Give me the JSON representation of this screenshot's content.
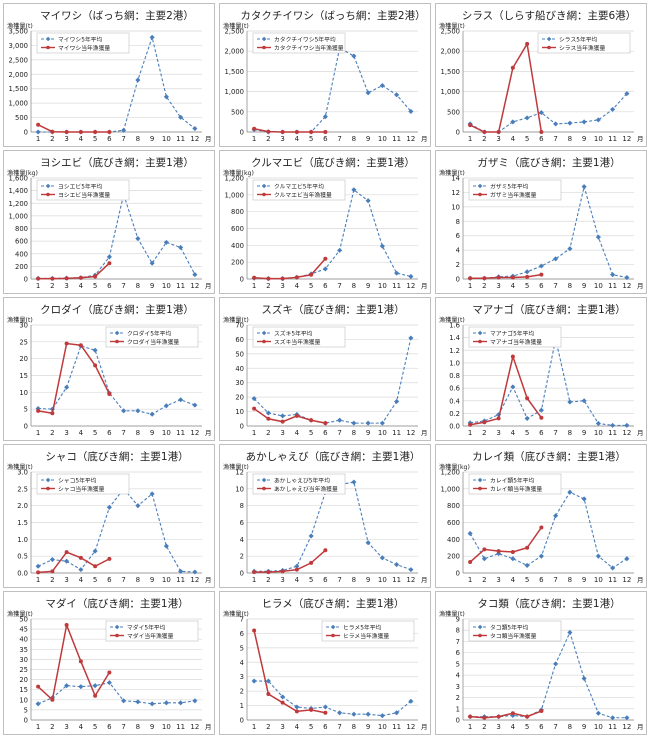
{
  "colors": {
    "avg": "#4a7ebb",
    "cur": "#c0393b",
    "grid": "#d9d9d9",
    "axis": "#7f7f7f",
    "text": "#222222"
  },
  "chart_data": [
    {
      "type": "line",
      "title": "マイワシ（ばっち網：主要2港）",
      "ylabel": "漁獲量(t)",
      "xlabel": "月",
      "ylim": [
        0,
        3500
      ],
      "ystep": 500,
      "legend": "top-left",
      "categories": [
        "1",
        "2",
        "3",
        "4",
        "5",
        "6",
        "7",
        "8",
        "9",
        "10",
        "11",
        "12"
      ],
      "series": [
        {
          "name": "マイワシ5年平均",
          "style": "avg",
          "values": [
            0,
            0,
            0,
            0,
            0,
            0,
            60,
            1800,
            3280,
            1220,
            510,
            120
          ]
        },
        {
          "name": "マイワシ当年漁獲量",
          "style": "cur",
          "values": [
            250,
            10,
            0,
            0,
            0,
            0,
            null,
            null,
            null,
            null,
            null,
            null
          ]
        }
      ]
    },
    {
      "type": "line",
      "title": "カタクチイワシ（ばっち網：主要2港）",
      "ylabel": "漁獲量(t)",
      "xlabel": "月",
      "ylim": [
        0,
        2500
      ],
      "ystep": 500,
      "legend": "top-left",
      "categories": [
        "1",
        "2",
        "3",
        "4",
        "5",
        "6",
        "7",
        "8",
        "9",
        "10",
        "11",
        "12"
      ],
      "series": [
        {
          "name": "カタクチイワシ5年平均",
          "style": "avg",
          "values": [
            60,
            0,
            0,
            0,
            0,
            380,
            2080,
            1880,
            970,
            1150,
            920,
            510
          ]
        },
        {
          "name": "カタクチイワシ当年漁獲量",
          "style": "cur",
          "values": [
            80,
            10,
            0,
            0,
            0,
            0,
            null,
            null,
            null,
            null,
            null,
            null
          ]
        }
      ]
    },
    {
      "type": "line",
      "title": "シラス（しらす船びき網：主要6港）",
      "ylabel": "漁獲量(t)",
      "xlabel": "月",
      "ylim": [
        0,
        2500
      ],
      "ystep": 500,
      "legend": "top-right",
      "categories": [
        "1",
        "2",
        "3",
        "4",
        "5",
        "6",
        "7",
        "8",
        "9",
        "10",
        "11",
        "12"
      ],
      "series": [
        {
          "name": "シラス5年平均",
          "style": "avg",
          "values": [
            200,
            0,
            0,
            250,
            350,
            480,
            200,
            220,
            250,
            300,
            560,
            950
          ]
        },
        {
          "name": "シラス当年漁獲量",
          "style": "cur",
          "values": [
            170,
            0,
            0,
            1590,
            2180,
            0,
            null,
            null,
            null,
            null,
            null,
            null
          ]
        }
      ]
    },
    {
      "type": "line",
      "title": "ヨシエビ（底びき網：主要1港）",
      "ylabel": "漁獲量(kg)",
      "xlabel": "月",
      "ylim": [
        0,
        1600
      ],
      "ystep": 200,
      "legend": "top-left",
      "categories": [
        "1",
        "2",
        "3",
        "4",
        "5",
        "6",
        "7",
        "8",
        "9",
        "10",
        "11",
        "12"
      ],
      "series": [
        {
          "name": "ヨシエビ5年平均",
          "style": "avg",
          "values": [
            10,
            10,
            15,
            20,
            60,
            350,
            1340,
            640,
            250,
            580,
            500,
            70
          ]
        },
        {
          "name": "ヨシエビ当年漁獲量",
          "style": "cur",
          "values": [
            5,
            5,
            10,
            20,
            40,
            250,
            null,
            null,
            null,
            null,
            null,
            null
          ]
        }
      ]
    },
    {
      "type": "line",
      "title": "クルマエビ（底びき網：主要1港）",
      "ylabel": "漁獲量(kg)",
      "xlabel": "月",
      "ylim": [
        0,
        1200
      ],
      "ystep": 200,
      "legend": "top-left",
      "categories": [
        "1",
        "2",
        "3",
        "4",
        "5",
        "6",
        "7",
        "8",
        "9",
        "10",
        "11",
        "12"
      ],
      "series": [
        {
          "name": "クルマエビ5年平均",
          "style": "avg",
          "values": [
            10,
            5,
            5,
            20,
            60,
            120,
            340,
            1060,
            930,
            390,
            70,
            30
          ]
        },
        {
          "name": "クルマエビ当年漁獲量",
          "style": "cur",
          "values": [
            15,
            5,
            5,
            20,
            50,
            240,
            null,
            null,
            null,
            null,
            null,
            null
          ]
        }
      ]
    },
    {
      "type": "line",
      "title": "ガザミ（底びき網：主要1港）",
      "ylabel": "漁獲量(t)",
      "xlabel": "月",
      "ylim": [
        0,
        14
      ],
      "ystep": 2,
      "legend": "top-left",
      "categories": [
        "1",
        "2",
        "3",
        "4",
        "5",
        "6",
        "7",
        "8",
        "9",
        "10",
        "11",
        "12"
      ],
      "series": [
        {
          "name": "ガザミ5年平均",
          "style": "avg",
          "values": [
            0.1,
            0.1,
            0.3,
            0.4,
            1.0,
            1.8,
            2.8,
            4.2,
            12.8,
            5.8,
            0.6,
            0.2
          ]
        },
        {
          "name": "ガザミ当年漁獲量",
          "style": "cur",
          "values": [
            0.1,
            0.1,
            0.2,
            0.2,
            0.3,
            0.6,
            null,
            null,
            null,
            null,
            null,
            null
          ]
        }
      ]
    },
    {
      "type": "line",
      "title": "クロダイ（底びき網：主要1港）",
      "ylabel": "漁獲量(t)",
      "xlabel": "月",
      "ylim": [
        0,
        30
      ],
      "ystep": 5,
      "legend": "top-right",
      "categories": [
        "1",
        "2",
        "3",
        "4",
        "5",
        "6",
        "7",
        "8",
        "9",
        "10",
        "11",
        "12"
      ],
      "series": [
        {
          "name": "クロダイ5年平均",
          "style": "avg",
          "values": [
            5.2,
            5.0,
            11.5,
            23.8,
            22.5,
            9.8,
            4.5,
            4.5,
            3.5,
            6.0,
            7.8,
            6.2
          ]
        },
        {
          "name": "クロダイ当年漁獲量",
          "style": "cur",
          "values": [
            4.5,
            3.8,
            24.5,
            24.0,
            18.0,
            9.5,
            null,
            null,
            null,
            null,
            null,
            null
          ]
        }
      ]
    },
    {
      "type": "line",
      "title": "スズキ（底びき網：主要1港）",
      "ylabel": "漁獲量(t)",
      "xlabel": "月",
      "ylim": [
        0,
        70
      ],
      "ystep": 10,
      "legend": "top-left",
      "categories": [
        "1",
        "2",
        "3",
        "4",
        "5",
        "6",
        "7",
        "8",
        "9",
        "10",
        "11",
        "12"
      ],
      "series": [
        {
          "name": "スズキ5年平均",
          "style": "avg",
          "values": [
            19,
            9,
            7,
            8,
            4,
            2,
            4,
            2,
            2,
            2,
            17,
            61
          ]
        },
        {
          "name": "スズキ当年漁獲量",
          "style": "cur",
          "values": [
            12,
            5,
            3,
            7,
            4,
            2,
            null,
            null,
            null,
            null,
            null,
            null
          ]
        }
      ]
    },
    {
      "type": "line",
      "title": "マアナゴ（底びき網：主要1港）",
      "ylabel": "漁獲量(t)",
      "xlabel": "月",
      "ylim": [
        0,
        1.6
      ],
      "ystep": 0.2,
      "legend": "top-left",
      "categories": [
        "1",
        "2",
        "3",
        "4",
        "5",
        "6",
        "7",
        "8",
        "9",
        "10",
        "11",
        "12"
      ],
      "series": [
        {
          "name": "マアナゴ5年平均",
          "style": "avg",
          "values": [
            0.05,
            0.08,
            0.18,
            0.62,
            0.12,
            0.25,
            1.38,
            0.38,
            0.4,
            0.04,
            0.01,
            0.01
          ]
        },
        {
          "name": "マアナゴ当年漁獲量",
          "style": "cur",
          "values": [
            0.02,
            0.06,
            0.12,
            1.1,
            0.44,
            0.13,
            null,
            null,
            null,
            null,
            null,
            null
          ]
        }
      ]
    },
    {
      "type": "line",
      "title": "シャコ（底びき網：主要1港）",
      "ylabel": "漁獲量(t)",
      "xlabel": "月",
      "ylim": [
        0,
        3
      ],
      "ystep": 0.5,
      "legend": "top-left",
      "categories": [
        "1",
        "2",
        "3",
        "4",
        "5",
        "6",
        "7",
        "8",
        "9",
        "10",
        "11",
        "12"
      ],
      "series": [
        {
          "name": "シャコ5年平均",
          "style": "avg",
          "values": [
            0.2,
            0.4,
            0.35,
            0.1,
            0.65,
            1.95,
            2.5,
            2.0,
            2.35,
            0.8,
            0.05,
            0.03
          ]
        },
        {
          "name": "シャコ当年漁獲量",
          "style": "cur",
          "values": [
            0.02,
            0.05,
            0.62,
            0.45,
            0.2,
            0.42,
            null,
            null,
            null,
            null,
            null,
            null
          ]
        }
      ]
    },
    {
      "type": "line",
      "title": "あかしゃえび（底びき網：主要1港）",
      "ylabel": "漁獲量(t)",
      "xlabel": "月",
      "ylim": [
        0,
        12
      ],
      "ystep": 2,
      "legend": "top-left",
      "categories": [
        "1",
        "2",
        "3",
        "4",
        "5",
        "6",
        "7",
        "8",
        "9",
        "10",
        "11",
        "12"
      ],
      "series": [
        {
          "name": "あかしゃえび5年平均",
          "style": "avg",
          "values": [
            0.2,
            0.2,
            0.3,
            0.8,
            4.4,
            9.6,
            10.5,
            10.8,
            3.6,
            1.8,
            1.0,
            0.4
          ]
        },
        {
          "name": "あかしゃえび当年漁獲量",
          "style": "cur",
          "values": [
            0.1,
            0.1,
            0.2,
            0.4,
            1.2,
            2.7,
            null,
            null,
            null,
            null,
            null,
            null
          ]
        }
      ]
    },
    {
      "type": "line",
      "title": "カレイ類（底びき網：主要1港）",
      "ylabel": "漁獲量(kg)",
      "xlabel": "月",
      "ylim": [
        0,
        1200
      ],
      "ystep": 200,
      "legend": "top-left",
      "categories": [
        "1",
        "2",
        "3",
        "4",
        "5",
        "6",
        "7",
        "8",
        "9",
        "10",
        "11",
        "12"
      ],
      "series": [
        {
          "name": "カレイ類5年平均",
          "style": "avg",
          "values": [
            470,
            170,
            230,
            170,
            90,
            200,
            680,
            960,
            880,
            200,
            60,
            170
          ]
        },
        {
          "name": "カレイ類当年漁獲量",
          "style": "cur",
          "values": [
            130,
            280,
            260,
            250,
            300,
            540,
            null,
            null,
            null,
            null,
            null,
            null
          ]
        }
      ]
    },
    {
      "type": "line",
      "title": "マダイ（底びき網：主要1港）",
      "ylabel": "漁獲量(t)",
      "xlabel": "月",
      "ylim": [
        0,
        50
      ],
      "ystep": 5,
      "legend": "top-right",
      "categories": [
        "1",
        "2",
        "3",
        "4",
        "5",
        "6",
        "7",
        "8",
        "9",
        "10",
        "11",
        "12"
      ],
      "series": [
        {
          "name": "マダイ5年平均",
          "style": "avg",
          "values": [
            8,
            11,
            17,
            16.5,
            17,
            18.5,
            9.5,
            9,
            8,
            8.5,
            8.5,
            9.5
          ]
        },
        {
          "name": "マダイ当年漁獲量",
          "style": "cur",
          "values": [
            16.5,
            10,
            47,
            29,
            12,
            23.5,
            null,
            null,
            null,
            null,
            null,
            null
          ]
        }
      ]
    },
    {
      "type": "line",
      "title": "ヒラメ（底びき網：主要1港）",
      "ylabel": "漁獲量(t)",
      "xlabel": "月",
      "ylim": [
        0,
        7
      ],
      "ystep": 1,
      "legend": "top-right",
      "categories": [
        "1",
        "2",
        "3",
        "4",
        "5",
        "6",
        "7",
        "8",
        "9",
        "10",
        "11",
        "12"
      ],
      "series": [
        {
          "name": "ヒラメ5年平均",
          "style": "avg",
          "values": [
            2.7,
            2.7,
            1.6,
            0.9,
            0.8,
            0.9,
            0.5,
            0.4,
            0.4,
            0.3,
            0.5,
            1.3
          ]
        },
        {
          "name": "ヒラメ当年漁獲量",
          "style": "cur",
          "values": [
            6.2,
            1.8,
            1.2,
            0.6,
            0.7,
            0.5,
            null,
            null,
            null,
            null,
            null,
            null
          ]
        }
      ]
    },
    {
      "type": "line",
      "title": "タコ類（底びき網：主要1港）",
      "ylabel": "漁獲量(t)",
      "xlabel": "月",
      "ylim": [
        0,
        9
      ],
      "ystep": 1,
      "legend": "top-left",
      "categories": [
        "1",
        "2",
        "3",
        "4",
        "5",
        "6",
        "7",
        "8",
        "9",
        "10",
        "11",
        "12"
      ],
      "series": [
        {
          "name": "タコ類5年平均",
          "style": "avg",
          "values": [
            0.3,
            0.3,
            0.3,
            0.4,
            0.3,
            0.9,
            5.0,
            7.8,
            3.7,
            0.6,
            0.2,
            0.2
          ]
        },
        {
          "name": "タコ類当年漁獲量",
          "style": "cur",
          "values": [
            0.3,
            0.2,
            0.3,
            0.6,
            0.3,
            0.8,
            null,
            null,
            null,
            null,
            null,
            null
          ]
        }
      ]
    }
  ]
}
